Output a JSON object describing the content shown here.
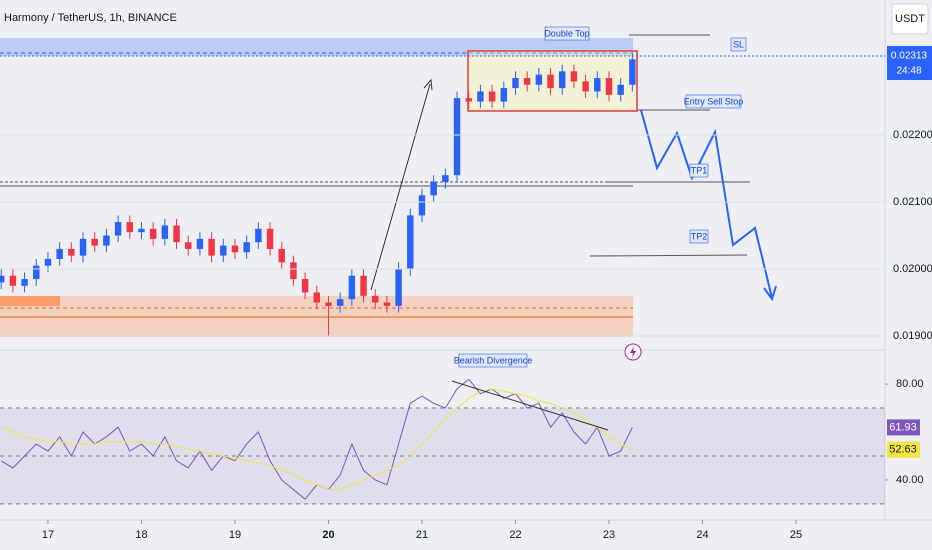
{
  "header": {
    "title": "Harmony / TetherUS, 1h, BINANCE",
    "currency_button": "USDT",
    "countdown": "24:48"
  },
  "chart_data": [
    {
      "type": "candlestick",
      "x": [
        16.5,
        16.625,
        16.75,
        16.875,
        17,
        17.125,
        17.25,
        17.375,
        17.5,
        17.625,
        17.75,
        17.875,
        18,
        18.125,
        18.25,
        18.375,
        18.5,
        18.625,
        18.75,
        18.875,
        19,
        19.125,
        19.25,
        19.375,
        19.5,
        19.625,
        19.75,
        19.875,
        20,
        20.125,
        20.25,
        20.375,
        20.5,
        20.625,
        20.75,
        20.875,
        21,
        21.125,
        21.25,
        21.375,
        21.5,
        21.625,
        21.75,
        21.875,
        22,
        22.125,
        22.25,
        22.375,
        22.5,
        22.625,
        22.75,
        22.875,
        23,
        23.125,
        23.25
      ],
      "open": [
        0.0198,
        0.0199,
        0.01975,
        0.01985,
        0.02005,
        0.02015,
        0.0203,
        0.0202,
        0.02045,
        0.02035,
        0.0205,
        0.0207,
        0.02055,
        0.0206,
        0.02045,
        0.02065,
        0.0204,
        0.0203,
        0.02045,
        0.0202,
        0.02035,
        0.02025,
        0.0204,
        0.0206,
        0.0203,
        0.0201,
        0.01985,
        0.01965,
        0.0195,
        0.01945,
        0.01955,
        0.0199,
        0.0196,
        0.0195,
        0.01945,
        0.02,
        0.0208,
        0.0211,
        0.0213,
        0.0214,
        0.02255,
        0.0225,
        0.02265,
        0.0225,
        0.0227,
        0.02285,
        0.02275,
        0.0229,
        0.0227,
        0.02295,
        0.0228,
        0.02265,
        0.02285,
        0.0226,
        0.02275
      ],
      "high": [
        0.02,
        0.02,
        0.01995,
        0.02015,
        0.02025,
        0.0204,
        0.0204,
        0.02055,
        0.02055,
        0.0206,
        0.0208,
        0.0208,
        0.0207,
        0.0207,
        0.02075,
        0.02075,
        0.0205,
        0.02055,
        0.02055,
        0.02045,
        0.02045,
        0.0205,
        0.0207,
        0.0207,
        0.0204,
        0.0202,
        0.01995,
        0.01975,
        0.0196,
        0.01965,
        0.02,
        0.02,
        0.0197,
        0.0196,
        0.0201,
        0.0209,
        0.0212,
        0.0214,
        0.0215,
        0.02265,
        0.02265,
        0.02275,
        0.02275,
        0.0228,
        0.02295,
        0.02295,
        0.023,
        0.023,
        0.02305,
        0.02305,
        0.0229,
        0.02295,
        0.02295,
        0.02285,
        0.02323
      ],
      "low": [
        0.0197,
        0.01965,
        0.01965,
        0.01975,
        0.01995,
        0.02005,
        0.0201,
        0.0201,
        0.02025,
        0.02025,
        0.0204,
        0.02045,
        0.02045,
        0.02035,
        0.02035,
        0.0203,
        0.0202,
        0.0202,
        0.0201,
        0.0201,
        0.02015,
        0.02015,
        0.0203,
        0.0202,
        0.02,
        0.01975,
        0.01955,
        0.0194,
        0.019,
        0.01935,
        0.01945,
        0.0195,
        0.0194,
        0.01935,
        0.01935,
        0.0199,
        0.0207,
        0.021,
        0.0212,
        0.0213,
        0.0224,
        0.0224,
        0.0224,
        0.0224,
        0.0226,
        0.02265,
        0.02265,
        0.0226,
        0.0226,
        0.0227,
        0.02255,
        0.02255,
        0.0225,
        0.0225,
        0.02265
      ],
      "close": [
        0.0199,
        0.01975,
        0.01985,
        0.02005,
        0.02015,
        0.0203,
        0.0202,
        0.02045,
        0.02035,
        0.0205,
        0.0207,
        0.02055,
        0.0206,
        0.02045,
        0.02065,
        0.0204,
        0.0203,
        0.02045,
        0.0202,
        0.02035,
        0.02025,
        0.0204,
        0.0206,
        0.0203,
        0.0201,
        0.01985,
        0.01965,
        0.0195,
        0.01945,
        0.01955,
        0.0199,
        0.0196,
        0.0195,
        0.01945,
        0.02,
        0.0208,
        0.0211,
        0.0213,
        0.0214,
        0.02255,
        0.0225,
        0.02265,
        0.0225,
        0.0227,
        0.02285,
        0.02275,
        0.0229,
        0.0227,
        0.02295,
        0.0228,
        0.02265,
        0.02285,
        0.0226,
        0.02275,
        0.02313
      ],
      "up_color": "#2962ff",
      "down_color": "#f23645",
      "xlim": [
        16.487,
        25.952
      ],
      "ylim": [
        0.018866,
        0.024015
      ],
      "yticks": [
        {
          "value": 0.022,
          "label": "0.02200"
        },
        {
          "value": 0.021,
          "label": "0.02100"
        },
        {
          "value": 0.02,
          "label": "0.02000"
        },
        {
          "value": 0.019,
          "label": "0.01900"
        }
      ],
      "annotations": {
        "double_top": "Double Top",
        "sl": "SL",
        "entry": "Entry Sell Stop",
        "tp1": "TP1",
        "tp2": "TP2"
      }
    },
    {
      "type": "line",
      "x": [
        16.5,
        16.625,
        16.75,
        16.875,
        17,
        17.125,
        17.25,
        17.375,
        17.5,
        17.625,
        17.75,
        17.875,
        18,
        18.125,
        18.25,
        18.375,
        18.5,
        18.625,
        18.75,
        18.875,
        19,
        19.125,
        19.25,
        19.375,
        19.5,
        19.625,
        19.75,
        19.875,
        20,
        20.125,
        20.25,
        20.375,
        20.5,
        20.625,
        20.75,
        20.875,
        21,
        21.125,
        21.25,
        21.375,
        21.5,
        21.625,
        21.75,
        21.875,
        22,
        22.125,
        22.25,
        22.375,
        22.5,
        22.625,
        22.75,
        22.875,
        23,
        23.125,
        23.25
      ],
      "series": [
        {
          "color": "#7e57c2",
          "values": [
            48,
            45,
            50,
            55,
            52,
            58,
            50,
            60,
            55,
            58,
            62,
            52,
            55,
            50,
            58,
            48,
            45,
            52,
            44,
            50,
            48,
            55,
            60,
            48,
            40,
            36,
            32,
            38,
            36,
            42,
            55,
            44,
            40,
            38,
            55,
            72,
            75,
            72,
            70,
            78,
            82,
            76,
            78,
            74,
            76,
            70,
            72,
            62,
            68,
            60,
            55,
            62,
            50,
            52,
            61.93
          ]
        },
        {
          "color": "#f5e342",
          "values": [
            62,
            60,
            58,
            57,
            56,
            56,
            55,
            55,
            55,
            56,
            56,
            56,
            56,
            55,
            55,
            54,
            53,
            52,
            51,
            50,
            49,
            48,
            47,
            46,
            44,
            42,
            40,
            38,
            36,
            36,
            38,
            40,
            42,
            44,
            46,
            50,
            55,
            60,
            65,
            70,
            74,
            77,
            78,
            77,
            76,
            75,
            73,
            72,
            70,
            68,
            65,
            62,
            58,
            55,
            52.63
          ]
        }
      ],
      "xlim": [
        16.487,
        25.952
      ],
      "ylim": [
        23.3,
        86.7
      ],
      "yticks": [
        {
          "value": 80,
          "label": "80.00"
        },
        {
          "value": 40,
          "label": "40.00"
        }
      ],
      "levels": [
        70,
        50,
        30
      ],
      "xticks": [
        17,
        18,
        19,
        20,
        21,
        22,
        23,
        24,
        25
      ],
      "annotation": "Bearish Divergence"
    }
  ]
}
